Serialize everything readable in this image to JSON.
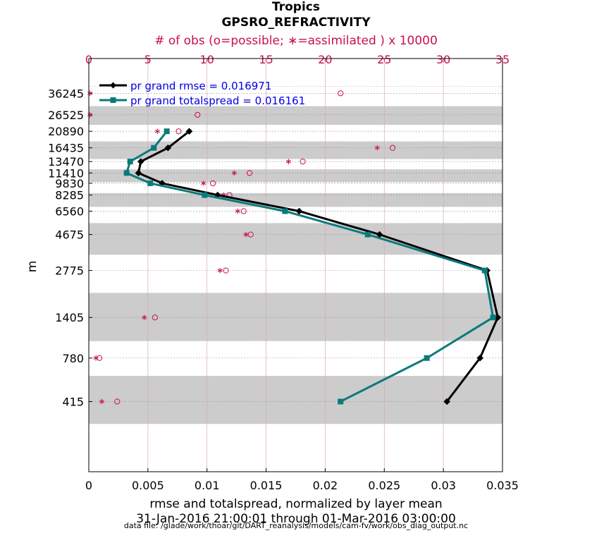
{
  "chart_data": {
    "type": "line",
    "title": "Tropics",
    "subtitle": "GPSRO_REFRACTIVITY",
    "top_axis_label": "# of obs (o=possible; ∗=assimilated ) x 10000",
    "xlabel": "rmse and totalspread, normalized by layer mean",
    "ylabel": "m",
    "date_range": "31-Jan-2016 21:00:01 through 01-Mar-2016 03:00:00",
    "data_file": "data file: /glade/work/thoar/git/DART_reanalysis/models/cam-fv/work/obs_diag_output.nc",
    "xlim": [
      0,
      0.035
    ],
    "x_ticks": [
      0,
      0.005,
      0.01,
      0.015,
      0.02,
      0.025,
      0.03,
      0.035
    ],
    "x_tick_labels": [
      "0",
      "0.005",
      "0.01",
      "0.015",
      "0.02",
      "0.025",
      "0.03",
      "0.035"
    ],
    "top_xlim": [
      0,
      35
    ],
    "top_ticks": [
      0,
      5,
      10,
      15,
      20,
      25,
      30,
      35
    ],
    "top_tick_labels": [
      "0",
      "5",
      "10",
      "15",
      "20",
      "25",
      "30",
      "35"
    ],
    "y_scale": "log",
    "ylim": [
      150,
      60000
    ],
    "y_levels": [
      415,
      780,
      1405,
      2775,
      4675,
      6560,
      8285,
      9830,
      11410,
      13470,
      16435,
      20890,
      26525,
      36245
    ],
    "y_tick_labels": [
      "415",
      "780",
      "1405",
      "2775",
      "4675",
      "6560",
      "8285",
      "9830",
      "11410",
      "13470",
      "16435",
      "20890",
      "26525",
      "36245"
    ],
    "layer_bounds": [
      [
        300,
        600
      ],
      [
        600,
        1000
      ],
      [
        1000,
        2000
      ],
      [
        2000,
        3500
      ],
      [
        3500,
        5500
      ],
      [
        5500,
        7000
      ],
      [
        7000,
        8500
      ],
      [
        8500,
        10000
      ],
      [
        10000,
        12000
      ],
      [
        12000,
        14000
      ],
      [
        14000,
        18000
      ],
      [
        18000,
        23000
      ],
      [
        23000,
        30000
      ],
      [
        30000,
        40000
      ]
    ],
    "shaded_layers": [
      0,
      2,
      4,
      6,
      8,
      10,
      12
    ],
    "series": [
      {
        "name": "pr grand rmse = 0.016971",
        "color": "#000000",
        "marker": "diamond",
        "x": [
          0.0303,
          0.0331,
          0.0346,
          0.0337,
          0.0246,
          0.0178,
          0.0109,
          0.0062,
          0.0042,
          0.0044,
          0.0067,
          0.0085
        ],
        "y": [
          415,
          780,
          1405,
          2775,
          4675,
          6560,
          8285,
          9830,
          11410,
          13470,
          16435,
          20890
        ]
      },
      {
        "name": "pr grand totalspread = 0.016161",
        "color": "#0a7a7a",
        "marker": "square",
        "x": [
          0.0213,
          0.0286,
          0.0342,
          0.0335,
          0.0236,
          0.0166,
          0.0098,
          0.0052,
          0.0032,
          0.0035,
          0.0055,
          0.0066
        ],
        "y": [
          415,
          780,
          1405,
          2775,
          4675,
          6560,
          8285,
          9830,
          11410,
          13470,
          16435,
          20890
        ]
      }
    ],
    "obs_possible": {
      "name": "o=possible",
      "color": "#c8104f",
      "marker": "circle",
      "x": [
        2.4,
        0.9,
        5.6,
        11.6,
        13.7,
        13.1,
        11.9,
        10.5,
        13.6,
        18.1,
        25.7,
        7.6,
        9.2,
        21.3
      ],
      "y": [
        415,
        780,
        1405,
        2775,
        4675,
        6560,
        8285,
        9830,
        11410,
        13470,
        16435,
        20890,
        26525,
        36245
      ]
    },
    "obs_assimilated": {
      "name": "∗=assimilated",
      "color": "#c8104f",
      "marker": "asterisk",
      "x": [
        1.1,
        0.6,
        4.7,
        11.1,
        13.3,
        12.6,
        11.4,
        9.7,
        12.3,
        16.9,
        24.4,
        5.8,
        0.1,
        0.1
      ],
      "y": [
        415,
        780,
        1405,
        2775,
        4675,
        6560,
        8285,
        9830,
        11410,
        13470,
        16435,
        20890,
        26525,
        36245
      ]
    }
  },
  "colors": {
    "shade": "#cccccc",
    "obs": "#c8104f",
    "rmse": "#000000",
    "spread": "#0a7a7a",
    "legend_text": "#0000e6"
  }
}
